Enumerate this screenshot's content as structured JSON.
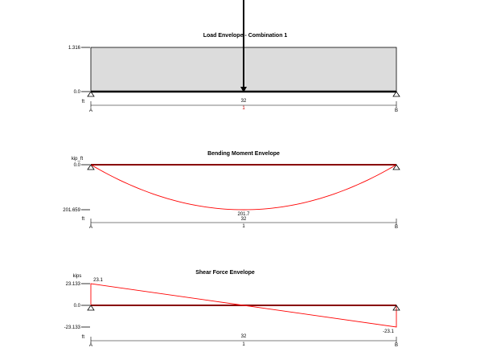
{
  "chart_data": [
    {
      "type": "area",
      "title": "Load Envelope - Combination 1",
      "yticks": [
        "1.316",
        "0.0"
      ],
      "ylim": [
        0,
        1.316
      ],
      "load_value": 1.316,
      "point_load": "downward arrow at 16 ft (midspan)",
      "unit": "ft",
      "span_length": "32",
      "span_label": "1",
      "supports": [
        "A",
        "B"
      ],
      "colors": {
        "fill": "#dcdcdc",
        "beam": "#000000"
      }
    },
    {
      "type": "line",
      "title": "Bending Moment Envelope",
      "ylabel": "kip_ft",
      "yticks": [
        "0.0",
        "201.659"
      ],
      "ylim": [
        0,
        201.659
      ],
      "x": [
        0,
        4,
        8,
        12,
        16,
        20,
        24,
        28,
        32
      ],
      "series": [
        {
          "values": [
            0,
            88.2,
            151.2,
            189.0,
            201.7,
            189.0,
            151.2,
            88.2,
            0
          ]
        }
      ],
      "max_label": "201.7",
      "unit": "ft",
      "span_length": "32",
      "span_label": "1",
      "supports": [
        "A",
        "B"
      ],
      "colors": {
        "curve": "#ff0000",
        "baseline": "#880000"
      }
    },
    {
      "type": "line",
      "title": "Shear Force Envelope",
      "ylabel": "kips",
      "yticks": [
        "23.133",
        "0.0",
        "-23.133"
      ],
      "ylim": [
        -23.133,
        23.133
      ],
      "x": [
        0,
        16,
        16,
        32
      ],
      "series": [
        {
          "values": [
            23.1,
            0,
            0,
            -23.1
          ]
        }
      ],
      "start_label": "23.1",
      "end_label": "-23.1",
      "unit": "ft",
      "span_length": "32",
      "span_label": "1",
      "supports": [
        "A",
        "B"
      ],
      "colors": {
        "curve": "#ff0000",
        "baseline": "#880000"
      }
    }
  ]
}
